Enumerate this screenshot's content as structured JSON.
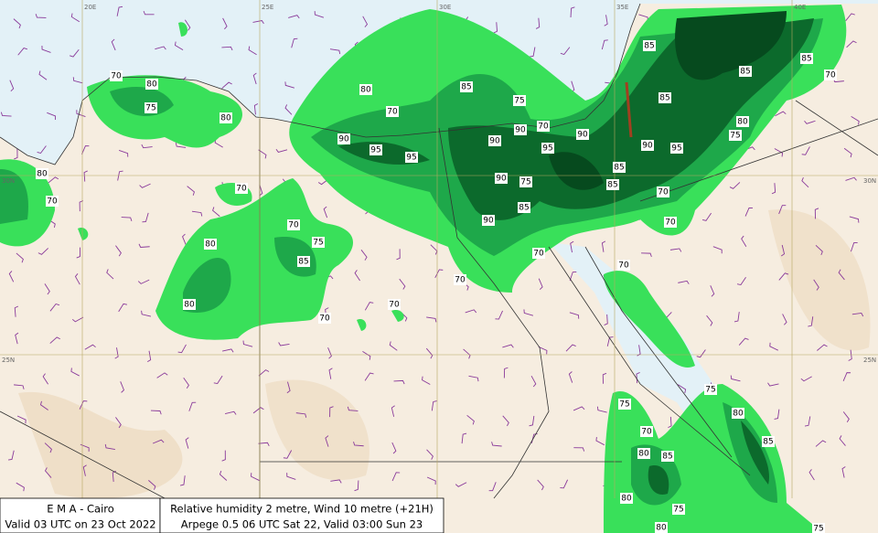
{
  "footer": {
    "left": [
      "E M A  -  Cairo",
      "Valid 03 UTC on 23 Oct 2022"
    ],
    "right": [
      "Relative humidity  2 metre, Wind  10 metre (+21H)",
      "Arpege 0.5 06 UTC Sat 22, Valid 03:00 Sun 23"
    ]
  },
  "grid_labels": {
    "longitude": [
      "20E",
      "25E",
      "30E",
      "35E",
      "40E"
    ],
    "latitude": [
      "30N",
      "25N"
    ]
  },
  "contour_labels": [
    70,
    80,
    75,
    80,
    80,
    70,
    70,
    70,
    75,
    80,
    85,
    80,
    70,
    70,
    80,
    70,
    90,
    95,
    95,
    85,
    75,
    90,
    90,
    70,
    95,
    90,
    90,
    75,
    85,
    90,
    70,
    70,
    85,
    85,
    90,
    95,
    85,
    85,
    70,
    70,
    85,
    85,
    70,
    80,
    75,
    70,
    75,
    70,
    80,
    85,
    75,
    80,
    85,
    80,
    75,
    80,
    75
  ]
}
